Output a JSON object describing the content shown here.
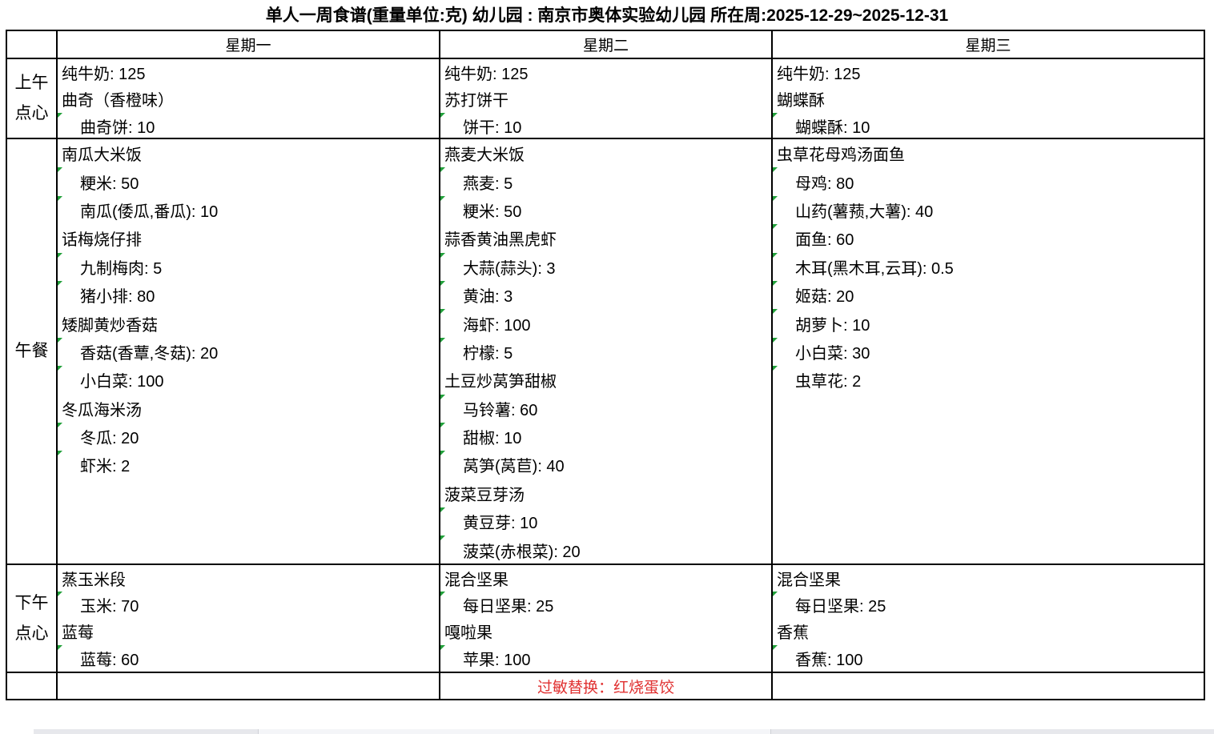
{
  "title": "单人一周食谱(重量单位:克) 幼儿园 : 南京市奥体实验幼儿园 所在周:2025-12-29~2025-12-31",
  "colors": {
    "text": "#000000",
    "grid_border": "#000000",
    "allergy_note_red": "#e03131",
    "comment_indicator_green": "#21a03a",
    "scrollbar_track": "#e7e8ec",
    "scrollbar_thumb": "#f4f5f8"
  },
  "table": {
    "corner_header": "",
    "day_headers": [
      "星期一",
      "星期二",
      "星期三"
    ],
    "allergy_note": "过敏替换：红烧蛋饺",
    "rows": [
      {
        "section": "morning-snack",
        "label": "上午点心",
        "label_lines": [
          "上午",
          "点心"
        ],
        "days": [
          {
            "lines": [
              {
                "text": "纯牛奶: 125",
                "type": "dish"
              },
              {
                "text": "曲奇（香橙味）",
                "type": "dish"
              },
              {
                "text": "曲奇饼: 10",
                "type": "ingredient"
              }
            ]
          },
          {
            "lines": [
              {
                "text": "纯牛奶: 125",
                "type": "dish"
              },
              {
                "text": "苏打饼干",
                "type": "dish"
              },
              {
                "text": "饼干: 10",
                "type": "ingredient"
              }
            ]
          },
          {
            "lines": [
              {
                "text": "纯牛奶: 125",
                "type": "dish"
              },
              {
                "text": "蝴蝶酥",
                "type": "dish"
              },
              {
                "text": "蝴蝶酥: 10",
                "type": "ingredient"
              }
            ]
          }
        ]
      },
      {
        "section": "lunch",
        "label": "午餐",
        "label_lines": [
          "午餐"
        ],
        "days": [
          {
            "lines": [
              {
                "text": "南瓜大米饭",
                "type": "dish"
              },
              {
                "text": "粳米: 50",
                "type": "ingredient"
              },
              {
                "text": "南瓜(倭瓜,番瓜): 10",
                "type": "ingredient"
              },
              {
                "text": "话梅烧仔排",
                "type": "dish"
              },
              {
                "text": "九制梅肉: 5",
                "type": "ingredient"
              },
              {
                "text": "猪小排: 80",
                "type": "ingredient"
              },
              {
                "text": "矮脚黄炒香菇",
                "type": "dish"
              },
              {
                "text": "香菇(香蕈,冬菇): 20",
                "type": "ingredient"
              },
              {
                "text": "小白菜: 100",
                "type": "ingredient"
              },
              {
                "text": "冬瓜海米汤",
                "type": "dish"
              },
              {
                "text": "冬瓜: 20",
                "type": "ingredient"
              },
              {
                "text": "虾米: 2",
                "type": "ingredient"
              }
            ]
          },
          {
            "lines": [
              {
                "text": "燕麦大米饭",
                "type": "dish"
              },
              {
                "text": "燕麦: 5",
                "type": "ingredient"
              },
              {
                "text": "粳米: 50",
                "type": "ingredient"
              },
              {
                "text": "蒜香黄油黑虎虾",
                "type": "dish"
              },
              {
                "text": "大蒜(蒜头): 3",
                "type": "ingredient"
              },
              {
                "text": "黄油: 3",
                "type": "ingredient"
              },
              {
                "text": "海虾: 100",
                "type": "ingredient"
              },
              {
                "text": "柠檬: 5",
                "type": "ingredient"
              },
              {
                "text": "土豆炒莴笋甜椒",
                "type": "dish"
              },
              {
                "text": "马铃薯: 60",
                "type": "ingredient"
              },
              {
                "text": "甜椒: 10",
                "type": "ingredient"
              },
              {
                "text": "莴笋(莴苣): 40",
                "type": "ingredient"
              },
              {
                "text": "菠菜豆芽汤",
                "type": "dish"
              },
              {
                "text": "黄豆芽: 10",
                "type": "ingredient"
              },
              {
                "text": "菠菜(赤根菜): 20",
                "type": "ingredient"
              }
            ]
          },
          {
            "lines": [
              {
                "text": "虫草花母鸡汤面鱼",
                "type": "dish"
              },
              {
                "text": "母鸡: 80",
                "type": "ingredient"
              },
              {
                "text": "山药(薯蓣,大薯): 40",
                "type": "ingredient"
              },
              {
                "text": "面鱼: 60",
                "type": "ingredient"
              },
              {
                "text": "木耳(黑木耳,云耳): 0.5",
                "type": "ingredient"
              },
              {
                "text": "姬菇: 20",
                "type": "ingredient"
              },
              {
                "text": "胡萝卜: 10",
                "type": "ingredient"
              },
              {
                "text": "小白菜: 30",
                "type": "ingredient"
              },
              {
                "text": "虫草花: 2",
                "type": "ingredient"
              }
            ]
          }
        ]
      },
      {
        "section": "afternoon-snack",
        "label": "下午点心",
        "label_lines": [
          "下午",
          "点心"
        ],
        "days": [
          {
            "lines": [
              {
                "text": "蒸玉米段",
                "type": "dish"
              },
              {
                "text": "玉米: 70",
                "type": "ingredient"
              },
              {
                "text": "蓝莓",
                "type": "dish"
              },
              {
                "text": "蓝莓: 60",
                "type": "ingredient"
              }
            ]
          },
          {
            "lines": [
              {
                "text": "混合坚果",
                "type": "dish"
              },
              {
                "text": "每日坚果: 25",
                "type": "ingredient"
              },
              {
                "text": "嘎啦果",
                "type": "dish"
              },
              {
                "text": "苹果: 100",
                "type": "ingredient"
              }
            ]
          },
          {
            "lines": [
              {
                "text": "混合坚果",
                "type": "dish"
              },
              {
                "text": "每日坚果: 25",
                "type": "ingredient"
              },
              {
                "text": "香蕉",
                "type": "dish"
              },
              {
                "text": "香蕉: 100",
                "type": "ingredient"
              }
            ]
          }
        ]
      }
    ],
    "note_row": {
      "label": "",
      "note_day_index": 1
    }
  }
}
